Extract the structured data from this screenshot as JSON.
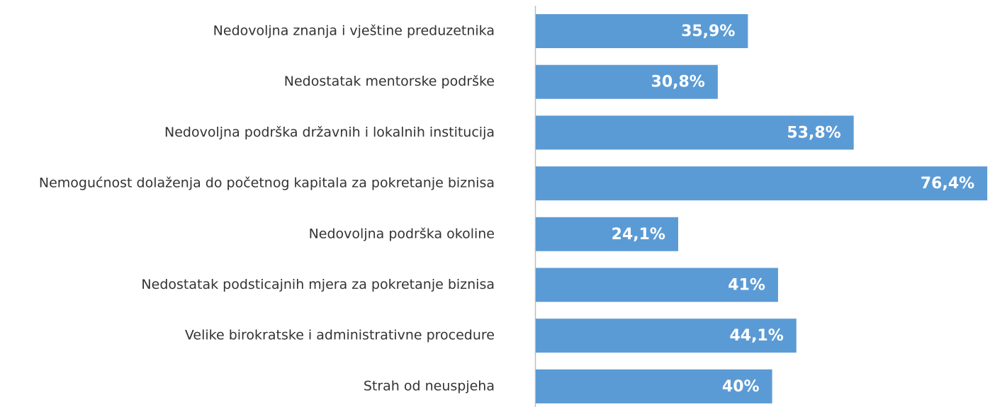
{
  "chart_data": {
    "type": "barh",
    "categories": [
      "Nedovoljna znanja i vještine preduzetnika",
      "Nedostatak mentorske podrške",
      "Nedovoljna podrška državnih i lokalnih institucija",
      "Nemogućnost dolaženja do početnog kapitala za pokretanje biznisa",
      "Nedovoljna podrška okoline",
      "Nedostatak podsticajnih mjera za pokretanje biznisa",
      "Velike birokratske i administrativne procedure",
      "Strah od neuspjeha"
    ],
    "values": [
      35.9,
      30.8,
      53.8,
      76.4,
      24.1,
      41,
      44.1,
      40
    ],
    "value_labels": [
      "35,9%",
      "30,8%",
      "53,8%",
      "76,4%",
      "24,1%",
      "41%",
      "44,1%",
      "40%"
    ],
    "color": "#5b9bd5"
  }
}
